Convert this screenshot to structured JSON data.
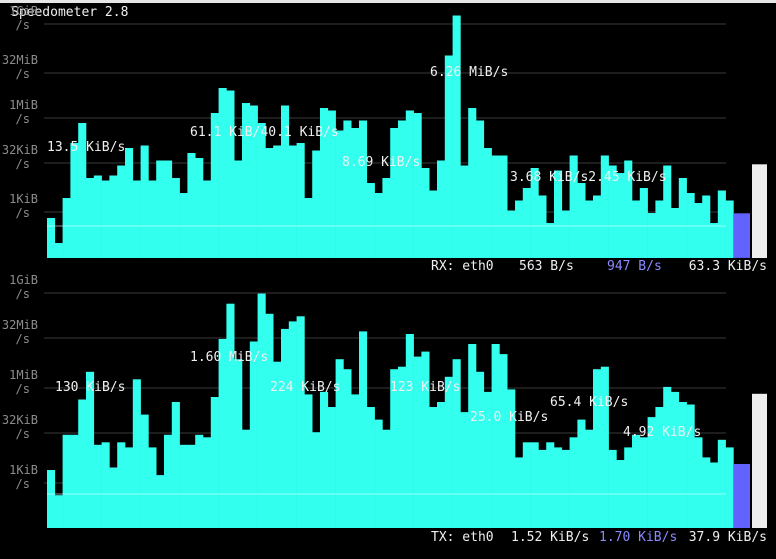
{
  "window": {
    "title": "Speedometer 2.8"
  },
  "colors": {
    "background": "#000000",
    "bars": "#33ffee",
    "scale_text": "#8c8c8c",
    "label_text": "#f0f0f0",
    "grid": "#3a3a3a",
    "avg_color": "#8a8aff",
    "gauge_fill": "#6262ff",
    "gauge_bg": "#eeeeee"
  },
  "scale_labels": [
    {
      "line1": "1GiB",
      "line2": "/s"
    },
    {
      "line1": "32MiB",
      "line2": "/s"
    },
    {
      "line1": "1MiB",
      "line2": "/s"
    },
    {
      "line1": "32KiB",
      "line2": "/s"
    },
    {
      "line1": "1KiB",
      "line2": "/s"
    }
  ],
  "panels": [
    {
      "id": "rx",
      "interface_label": "RX: eth0",
      "current_rate": "563 B/s",
      "average_rate": "947 B/s",
      "peak_rate": "63.3 KiB/s",
      "gauge_level": 0.38,
      "annotations": [
        "13.5 KiB/s",
        "61.1 KiB/40.1 KiB/s",
        "6.26 MiB/s",
        "8.69 KiB/s",
        "3.68 KiB/s2.45 KiB/s"
      ],
      "history": [
        0.16,
        0.06,
        0.24,
        0.46,
        0.54,
        0.32,
        0.33,
        0.31,
        0.33,
        0.37,
        0.44,
        0.31,
        0.45,
        0.31,
        0.39,
        0.39,
        0.32,
        0.26,
        0.42,
        0.4,
        0.31,
        0.58,
        0.68,
        0.67,
        0.39,
        0.62,
        0.61,
        0.54,
        0.44,
        0.45,
        0.61,
        0.45,
        0.46,
        0.24,
        0.43,
        0.6,
        0.59,
        0.51,
        0.55,
        0.52,
        0.55,
        0.3,
        0.26,
        0.32,
        0.52,
        0.55,
        0.59,
        0.58,
        0.36,
        0.27,
        0.39,
        0.81,
        0.97,
        0.37,
        0.6,
        0.55,
        0.44,
        0.41,
        0.41,
        0.19,
        0.23,
        0.28,
        0.36,
        0.25,
        0.14,
        0.35,
        0.19,
        0.41,
        0.3,
        0.23,
        0.25,
        0.41,
        0.37,
        0.34,
        0.39,
        0.23,
        0.28,
        0.18,
        0.23,
        0.37,
        0.2,
        0.32,
        0.26,
        0.22,
        0.25,
        0.14,
        0.27,
        0.23
      ]
    },
    {
      "id": "tx",
      "interface_label": "TX: eth0",
      "current_rate": "1.52 KiB/s",
      "average_rate": "1.70 KiB/s",
      "peak_rate": "37.9 KiB/s",
      "gauge_level": 0.54,
      "annotations": [
        "130 KiB/s",
        "1.60 MiB/s",
        "224 KiB/s",
        "123 KiB/s",
        "25.0 KiB/s",
        "65.4 KiB/s",
        "4.92 KiB/s"
      ],
      "history": [
        0.23,
        0.13,
        0.37,
        0.37,
        0.51,
        0.62,
        0.33,
        0.34,
        0.24,
        0.34,
        0.32,
        0.59,
        0.45,
        0.32,
        0.21,
        0.37,
        0.5,
        0.33,
        0.33,
        0.37,
        0.36,
        0.52,
        0.75,
        0.89,
        0.67,
        0.39,
        0.74,
        0.93,
        0.85,
        0.66,
        0.79,
        0.82,
        0.84,
        0.53,
        0.38,
        0.54,
        0.48,
        0.67,
        0.63,
        0.53,
        0.78,
        0.48,
        0.43,
        0.39,
        0.63,
        0.64,
        0.77,
        0.68,
        0.7,
        0.48,
        0.5,
        0.6,
        0.67,
        0.46,
        0.73,
        0.62,
        0.54,
        0.73,
        0.69,
        0.55,
        0.28,
        0.34,
        0.34,
        0.31,
        0.34,
        0.32,
        0.31,
        0.36,
        0.43,
        0.39,
        0.63,
        0.64,
        0.31,
        0.27,
        0.32,
        0.37,
        0.36,
        0.44,
        0.48,
        0.56,
        0.54,
        0.5,
        0.49,
        0.36,
        0.28,
        0.26,
        0.35,
        0.32
      ]
    }
  ]
}
